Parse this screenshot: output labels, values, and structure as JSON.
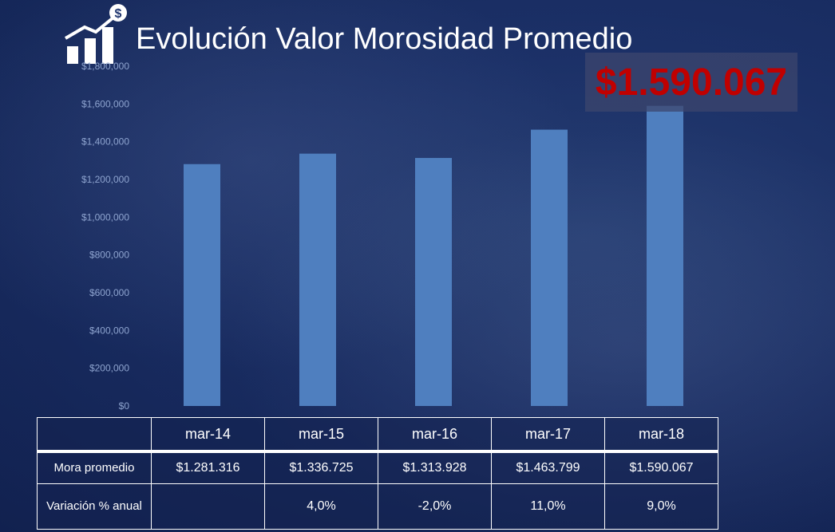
{
  "title": "Evolución Valor Morosidad Promedio",
  "highlight": "$1.590.067",
  "colors": {
    "bar": "#4f7fbf",
    "highlight_text": "#c00000",
    "accent": "#ffffff"
  },
  "icon": "growth-chart-dollar-icon",
  "chart_data": {
    "type": "bar",
    "categories": [
      "mar-14",
      "mar-15",
      "mar-16",
      "mar-17",
      "mar-18"
    ],
    "series": [
      {
        "values": [
          1281316,
          1336725,
          1313928,
          1463799,
          1590067
        ]
      }
    ],
    "ylim": [
      0,
      1800000
    ],
    "yticks": [
      0,
      200000,
      400000,
      600000,
      800000,
      1000000,
      1200000,
      1400000,
      1600000,
      1800000
    ],
    "ytick_labels": [
      "$0",
      "$200,000",
      "$400,000",
      "$600,000",
      "$800,000",
      "$1,000,000",
      "$1,200,000",
      "$1,400,000",
      "$1,600,000",
      "$1,800,000"
    ],
    "xlabel": "",
    "ylabel": "",
    "grid": false
  },
  "table": {
    "columns": [
      "mar-14",
      "mar-15",
      "mar-16",
      "mar-17",
      "mar-18"
    ],
    "rows": [
      {
        "label": "Mora promedio",
        "values": [
          "$1.281.316",
          "$1.336.725",
          "$1.313.928",
          "$1.463.799",
          "$1.590.067"
        ]
      },
      {
        "label": "Variación % anual",
        "values": [
          "",
          "4,0%",
          "-2,0%",
          "11,0%",
          "9,0%"
        ]
      }
    ]
  }
}
